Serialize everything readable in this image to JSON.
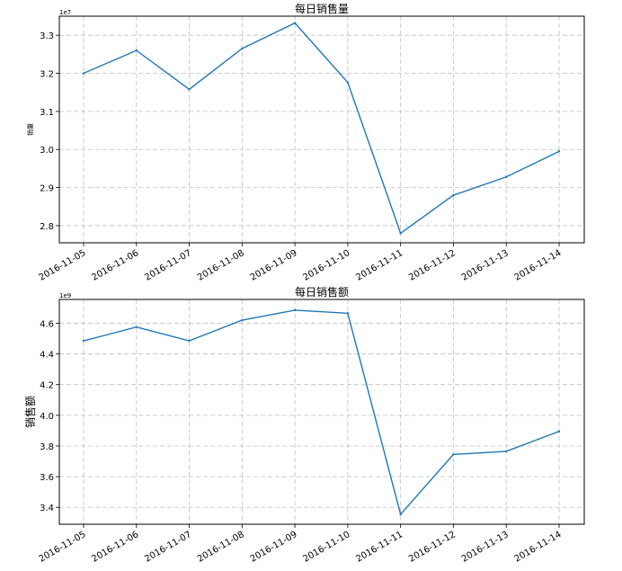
{
  "chart_data": [
    {
      "type": "line",
      "title": "每日销售量",
      "ylabel": "销量",
      "scale_note": "1e7",
      "x": [
        "2016-11-05",
        "2016-11-06",
        "2016-11-07",
        "2016-11-08",
        "2016-11-09",
        "2016-11-10",
        "2016-11-11",
        "2016-11-12",
        "2016-11-13",
        "2016-11-14"
      ],
      "values": [
        32000000,
        32600000,
        31580000,
        32650000,
        33320000,
        31760000,
        27800000,
        28800000,
        29280000,
        29950000
      ],
      "ylim": [
        27550000,
        33500000
      ],
      "yticks": [
        28000000,
        29000000,
        30000000,
        31000000,
        32000000,
        33000000
      ],
      "ytick_labels": [
        "2.8",
        "2.9",
        "3.0",
        "3.1",
        "3.2",
        "3.3"
      ],
      "grid": true,
      "color": "#1f77b4"
    },
    {
      "type": "line",
      "title": "每日销售额",
      "ylabel": "销售额",
      "scale_note": "1e9",
      "x": [
        "2016-11-05",
        "2016-11-06",
        "2016-11-07",
        "2016-11-08",
        "2016-11-09",
        "2016-11-10",
        "2016-11-11",
        "2016-11-12",
        "2016-11-13",
        "2016-11-14"
      ],
      "values": [
        4485000000,
        4575000000,
        4485000000,
        4620000000,
        4685000000,
        4665000000,
        3355000000,
        3745000000,
        3765000000,
        3895000000
      ],
      "ylim": [
        3290000000,
        4755000000
      ],
      "yticks": [
        3400000000,
        3600000000,
        3800000000,
        4000000000,
        4200000000,
        4400000000,
        4600000000
      ],
      "ytick_labels": [
        "3.4",
        "3.6",
        "3.8",
        "4.0",
        "4.2",
        "4.4",
        "4.6"
      ],
      "grid": true,
      "color": "#1f77b4"
    }
  ]
}
